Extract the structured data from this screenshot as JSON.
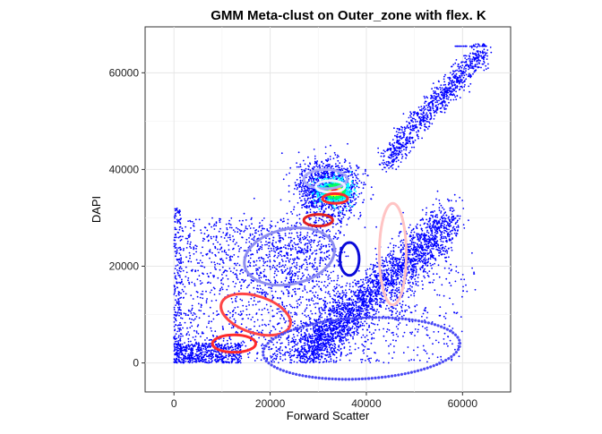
{
  "chart_data": {
    "type": "scatter",
    "title": "GMM Meta-clust on Outer_zone with flex. K",
    "xlabel": "Forward Scatter",
    "ylabel": "DAPI",
    "xlim": [
      -6000,
      70000
    ],
    "ylim": [
      -6000,
      69500
    ],
    "x_ticks": [
      "0",
      "20000",
      "40000",
      "60000"
    ],
    "y_ticks": [
      "0",
      "20000",
      "40000",
      "60000"
    ],
    "x_tick_values": [
      0,
      20000,
      40000,
      60000
    ],
    "y_tick_values": [
      0,
      20000,
      40000,
      60000
    ],
    "grid": true,
    "points_color": "#0000ff",
    "core_density_region": {
      "center": [
        33500,
        35500
      ],
      "colors": [
        "#00ffff",
        "#00ff66",
        "#ffff00",
        "#ff0000"
      ]
    },
    "clusters": [
      {
        "cx": 31500,
        "cy": 38000,
        "rx": 4500,
        "ry": 2000,
        "rotation_deg": 0,
        "color": "#a7a7f7",
        "width": "thick"
      },
      {
        "cx": 32500,
        "cy": 36500,
        "rx": 3000,
        "ry": 1200,
        "rotation_deg": 0,
        "color": "#f0f0ff",
        "width": "thick"
      },
      {
        "cx": 33500,
        "cy": 34000,
        "rx": 2600,
        "ry": 1000,
        "rotation_deg": 0,
        "color": "#ff2a2a",
        "width": "thick"
      },
      {
        "cx": 30000,
        "cy": 29500,
        "rx": 3000,
        "ry": 1200,
        "rotation_deg": 0,
        "color": "#e22020",
        "width": "thick"
      },
      {
        "cx": 36500,
        "cy": 21500,
        "rx": 2000,
        "ry": 3400,
        "rotation_deg": 0,
        "color": "#0b0bd9",
        "width": "thick"
      },
      {
        "cx": 45500,
        "cy": 22500,
        "rx": 2800,
        "ry": 10500,
        "rotation_deg": 0,
        "color": "#ffc4c4",
        "width": "thick"
      },
      {
        "cx": 24000,
        "cy": 22000,
        "rx": 9500,
        "ry": 5700,
        "rotation_deg": -12,
        "color": "#8d8df0",
        "width": "thick"
      },
      {
        "cx": 17000,
        "cy": 10000,
        "rx": 7500,
        "ry": 3800,
        "rotation_deg": 18,
        "color": "#ff4545",
        "width": "thick"
      },
      {
        "cx": 12500,
        "cy": 4000,
        "rx": 4500,
        "ry": 1800,
        "rotation_deg": 0,
        "color": "#ff2a2a",
        "width": "thick"
      },
      {
        "cx": 39000,
        "cy": 3000,
        "rx": 20500,
        "ry": 6300,
        "rotation_deg": -3,
        "color": "#4a4af5",
        "width": "dotted"
      }
    ]
  }
}
